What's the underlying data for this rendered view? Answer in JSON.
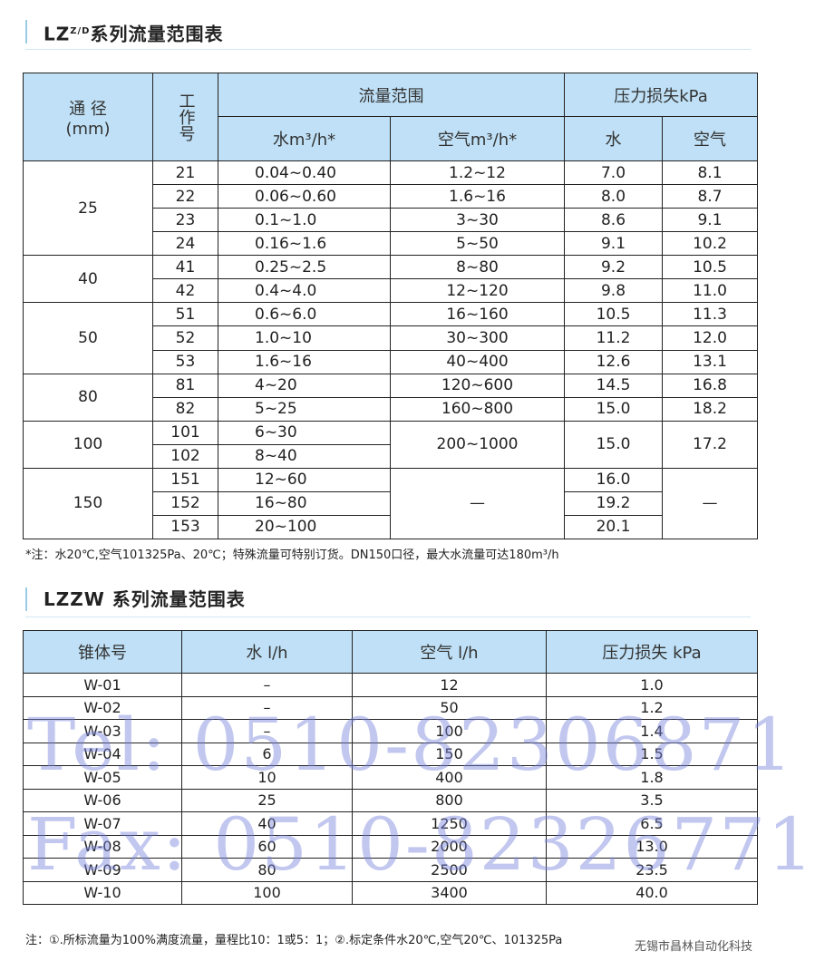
{
  "section1": {
    "title": "LZ",
    "title_sup": "Z/D",
    "title_rest": "系列流量范围表",
    "headers": {
      "dn": "通 径",
      "dn_unit": "(mm)",
      "no": "工作号",
      "flow": "流量范围",
      "dp": "压力损失kPa",
      "water": "水m³/h*",
      "air": "空气m³/h*",
      "dp_water": "水",
      "dp_air": "空气"
    },
    "groups": [
      {
        "dn": "25",
        "rows": [
          {
            "no": "21",
            "water": "0.04~0.40",
            "air": "1.2~12",
            "dpw": "7.0",
            "dpa": "8.1"
          },
          {
            "no": "22",
            "water": "0.06~0.60",
            "air": "1.6~16",
            "dpw": "8.0",
            "dpa": "8.7"
          },
          {
            "no": "23",
            "water": "0.1~1.0",
            "air": "3~30",
            "dpw": "8.6",
            "dpa": "9.1"
          },
          {
            "no": "24",
            "water": "0.16~1.6",
            "air": "5~50",
            "dpw": "9.1",
            "dpa": "10.2"
          }
        ]
      },
      {
        "dn": "40",
        "rows": [
          {
            "no": "41",
            "water": "0.25~2.5",
            "air": "8~80",
            "dpw": "9.2",
            "dpa": "10.5"
          },
          {
            "no": "42",
            "water": "0.4~4.0",
            "air": "12~120",
            "dpw": "9.8",
            "dpa": "11.0"
          }
        ]
      },
      {
        "dn": "50",
        "rows": [
          {
            "no": "51",
            "water": "0.6~6.0",
            "air": "16~160",
            "dpw": "10.5",
            "dpa": "11.3"
          },
          {
            "no": "52",
            "water": "1.0~10",
            "air": "30~300",
            "dpw": "11.2",
            "dpa": "12.0"
          },
          {
            "no": "53",
            "water": "1.6~16",
            "air": "40~400",
            "dpw": "12.6",
            "dpa": "13.1"
          }
        ]
      },
      {
        "dn": "80",
        "rows": [
          {
            "no": "81",
            "water": "4~20",
            "air": "120~600",
            "dpw": "14.5",
            "dpa": "16.8"
          },
          {
            "no": "82",
            "water": "5~25",
            "air": "160~800",
            "dpw": "15.0",
            "dpa": "18.2"
          }
        ]
      },
      {
        "dn": "100",
        "merged_air": "200~1000",
        "merged_dpw": "15.0",
        "merged_dpa": "17.2",
        "rows": [
          {
            "no": "101",
            "water": "6~30"
          },
          {
            "no": "102",
            "water": "8~40"
          }
        ]
      },
      {
        "dn": "150",
        "merged_air": "—",
        "merged_dpa": "—",
        "rows": [
          {
            "no": "151",
            "water": "12~60",
            "dpw": "16.0"
          },
          {
            "no": "152",
            "water": "16~80",
            "dpw": "19.2"
          },
          {
            "no": "153",
            "water": "20~100",
            "dpw": "20.1"
          }
        ]
      }
    ],
    "note": "*注：水20℃,空气101325Pa、20℃；特殊流量可特别订货。DN150口径，最大水流量可达180m³/h"
  },
  "section2": {
    "title": "LZZW 系列流量范围表",
    "headers": [
      "锥体号",
      "水 l/h",
      "空气 l/h",
      "压力损失 kPa"
    ],
    "rows": [
      [
        "W-01",
        "–",
        "12",
        "1.0"
      ],
      [
        "W-02",
        "–",
        "50",
        "1.2"
      ],
      [
        "W-03",
        "–",
        "100",
        "1.4"
      ],
      [
        "W-04",
        "6",
        "150",
        "1.5"
      ],
      [
        "W-05",
        "10",
        "400",
        "1.8"
      ],
      [
        "W-06",
        "25",
        "800",
        "3.5"
      ],
      [
        "W-07",
        "40",
        "1250",
        "6.5"
      ],
      [
        "W-08",
        "60",
        "2000",
        "13.0"
      ],
      [
        "W-09",
        "80",
        "2500",
        "23.5"
      ],
      [
        "W-10",
        "100",
        "3400",
        "40.0"
      ]
    ],
    "note": "注：①.所标流量为100%满度流量，量程比10：1或5：1；②.标定条件水20℃,空气20℃、101325Pa"
  },
  "watermark": {
    "tel": "Tel: 0510-82306871",
    "fax": "Fax: 0510-82326771",
    "company": "无锡市昌林自动化科技"
  },
  "colors": {
    "header_bg": "#bfe0f6",
    "accent": "#9ccbe6"
  }
}
